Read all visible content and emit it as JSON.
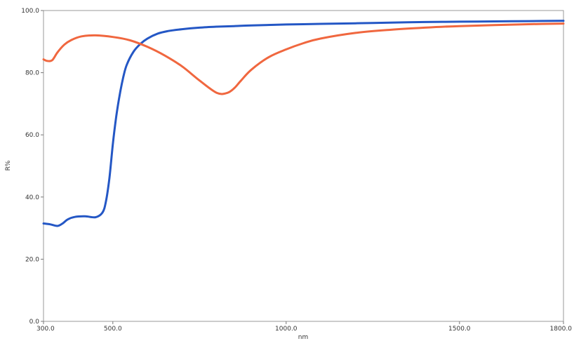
{
  "chart_data": {
    "type": "line",
    "title": "",
    "xlabel": "nm",
    "ylabel": "R%",
    "xlim": [
      300,
      1800
    ],
    "ylim": [
      0,
      100
    ],
    "x_ticks": [
      300,
      500,
      1000,
      1500,
      1800
    ],
    "x_tick_labels": [
      "300.0",
      "500.0",
      "1000.0",
      "1500.0",
      "1800.0"
    ],
    "y_ticks": [
      0,
      20,
      40,
      60,
      80,
      100
    ],
    "y_tick_labels": [
      "0.0",
      "20.0",
      "40.0",
      "60.0",
      "80.0",
      "100.0"
    ],
    "grid": false,
    "legend": "none",
    "series": [
      {
        "color": "#2457c5",
        "x": [
          300,
          320,
          340,
          355,
          370,
          390,
          420,
          450,
          470,
          480,
          490,
          500,
          510,
          520,
          530,
          540,
          560,
          580,
          600,
          630,
          660,
          700,
          750,
          800,
          850,
          900,
          1000,
          1100,
          1200,
          1300,
          1400,
          1500,
          1600,
          1700,
          1800
        ],
        "y": [
          31.5,
          31.2,
          30.7,
          31.5,
          32.8,
          33.6,
          33.8,
          33.5,
          35.0,
          38.5,
          46.0,
          57.0,
          66.0,
          73.0,
          78.5,
          82.5,
          86.8,
          89.3,
          91.0,
          92.6,
          93.4,
          94.0,
          94.5,
          94.8,
          95.0,
          95.2,
          95.5,
          95.7,
          95.9,
          96.1,
          96.3,
          96.4,
          96.5,
          96.6,
          96.7
        ]
      },
      {
        "color": "#f0673f",
        "x": [
          300,
          310,
          325,
          340,
          360,
          380,
          410,
          450,
          500,
          550,
          600,
          650,
          700,
          750,
          800,
          830,
          850,
          870,
          900,
          950,
          1000,
          1050,
          1100,
          1200,
          1300,
          1400,
          1500,
          1600,
          1700,
          1800
        ],
        "y": [
          84.3,
          83.8,
          84.0,
          86.5,
          89.0,
          90.5,
          91.7,
          92.0,
          91.5,
          90.4,
          88.3,
          85.5,
          82.0,
          77.5,
          73.5,
          73.5,
          75.0,
          77.5,
          81.0,
          85.0,
          87.5,
          89.5,
          91.0,
          92.8,
          93.8,
          94.5,
          95.0,
          95.3,
          95.6,
          95.8
        ]
      }
    ]
  }
}
